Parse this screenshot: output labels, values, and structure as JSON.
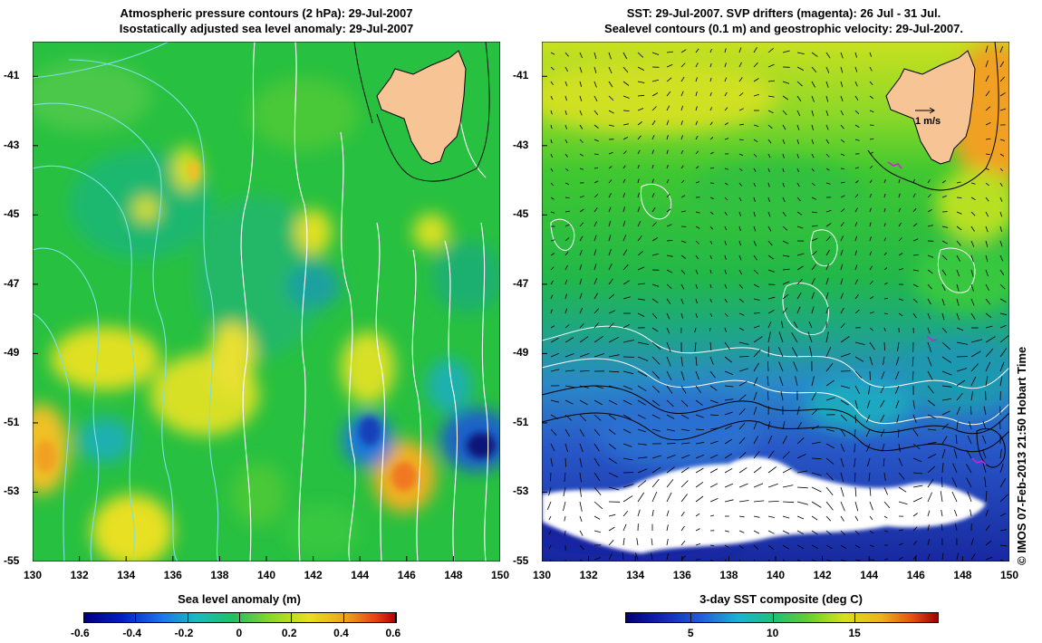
{
  "left_panel": {
    "title_line1": "Atmospheric pressure contours (2 hPa): 29-Jul-2007",
    "title_line2": "Isostatically adjusted sea level anomaly: 29-Jul-2007",
    "colorbar_title": "Sea level anomaly (m)",
    "colorbar_ticks": [
      "-0.6",
      "-0.4",
      "-0.2",
      "0",
      "0.2",
      "0.4",
      "0.6"
    ],
    "colors": {
      "low": "#00007a",
      "mid_low": "#1ea8e8",
      "mid": "#22c060",
      "mid_high": "#f0e020",
      "high": "#b00000"
    }
  },
  "right_panel": {
    "title_line1": "SST: 29-Jul-2007. SVP drifters (magenta): 26 Jul - 31 Jul.",
    "title_line2": "Sealevel contours (0.1 m) and geostrophic velocity: 29-Jul-2007.",
    "colorbar_title": "3-day SST composite (deg C)",
    "colorbar_ticks": [
      "5",
      "10",
      "15"
    ],
    "velocity_scale_label": "1 m/s",
    "colors": {
      "cold": "#1a2aa8",
      "cool": "#1ea8e8",
      "mild": "#22b850",
      "warm": "#d8e820",
      "hot": "#f0a020"
    }
  },
  "axes": {
    "x_ticks": [
      "130",
      "132",
      "134",
      "136",
      "138",
      "140",
      "142",
      "144",
      "146",
      "148",
      "150"
    ],
    "y_ticks": [
      "-41",
      "-43",
      "-45",
      "-47",
      "-49",
      "-51",
      "-53",
      "-55"
    ]
  },
  "credit": "© IMOS 07-Feb-2013 21:50 Hobart Time",
  "land_color": "#f7c595"
}
